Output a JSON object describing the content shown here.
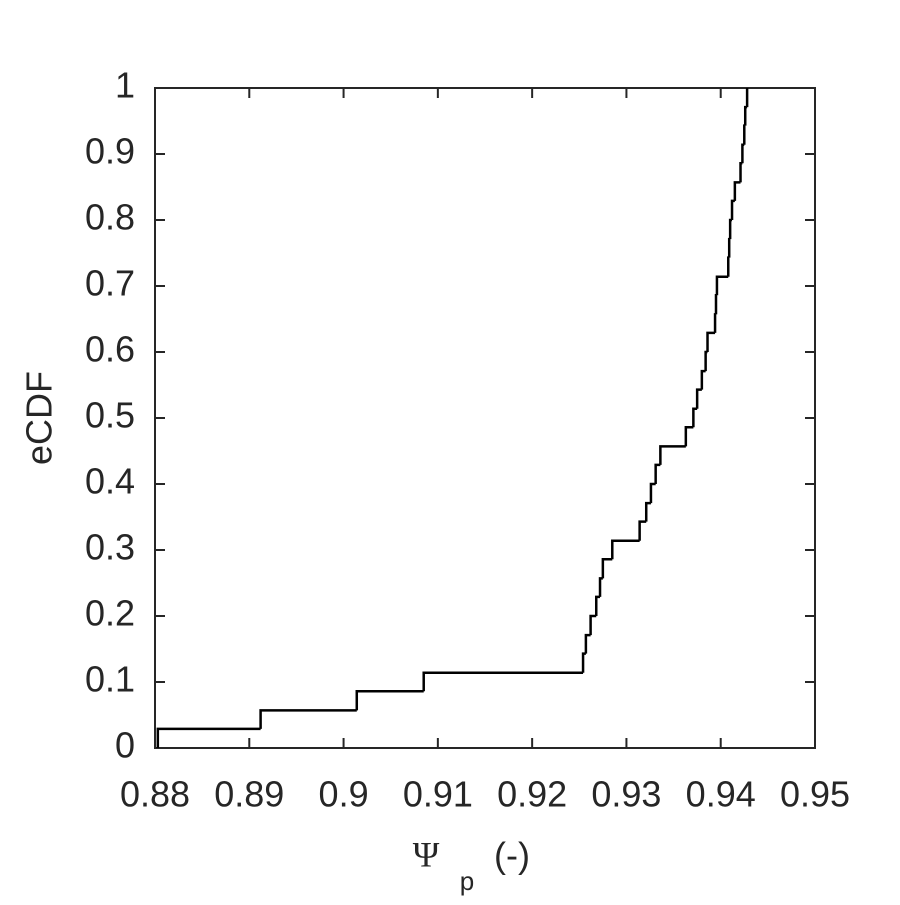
{
  "chart_data": {
    "type": "step",
    "y_label": "eCDF",
    "x_label": {
      "symbol": "Ψ",
      "subscript": "p",
      "unit": "(-)"
    },
    "xlim": [
      0.88,
      0.95
    ],
    "xticks": [
      0.88,
      0.89,
      0.9,
      0.91,
      0.92,
      0.93,
      0.94,
      0.95
    ],
    "ylim": [
      0,
      1
    ],
    "yticks": [
      0,
      0.1,
      0.2,
      0.3,
      0.4,
      0.5,
      0.6,
      0.7,
      0.8,
      0.9,
      1
    ],
    "series": [
      {
        "color": "#000000",
        "x": [
          0.8803,
          0.8912,
          0.9014,
          0.9085,
          0.9254,
          0.9257,
          0.9262,
          0.9268,
          0.9272,
          0.9275,
          0.9285,
          0.9314,
          0.9321,
          0.9326,
          0.9331,
          0.9336,
          0.9363,
          0.9371,
          0.9375,
          0.938,
          0.9384,
          0.9386,
          0.9394,
          0.9395,
          0.9396,
          0.9408,
          0.9409,
          0.941,
          0.9412,
          0.9415,
          0.9421,
          0.9423,
          0.9425,
          0.9426,
          0.9428
        ],
        "values": [
          0.029,
          0.057,
          0.086,
          0.114,
          0.143,
          0.171,
          0.2,
          0.229,
          0.257,
          0.286,
          0.314,
          0.343,
          0.371,
          0.4,
          0.429,
          0.457,
          0.486,
          0.514,
          0.543,
          0.571,
          0.6,
          0.629,
          0.657,
          0.686,
          0.714,
          0.743,
          0.771,
          0.8,
          0.829,
          0.857,
          0.886,
          0.914,
          0.943,
          0.971,
          1.0
        ]
      }
    ]
  }
}
